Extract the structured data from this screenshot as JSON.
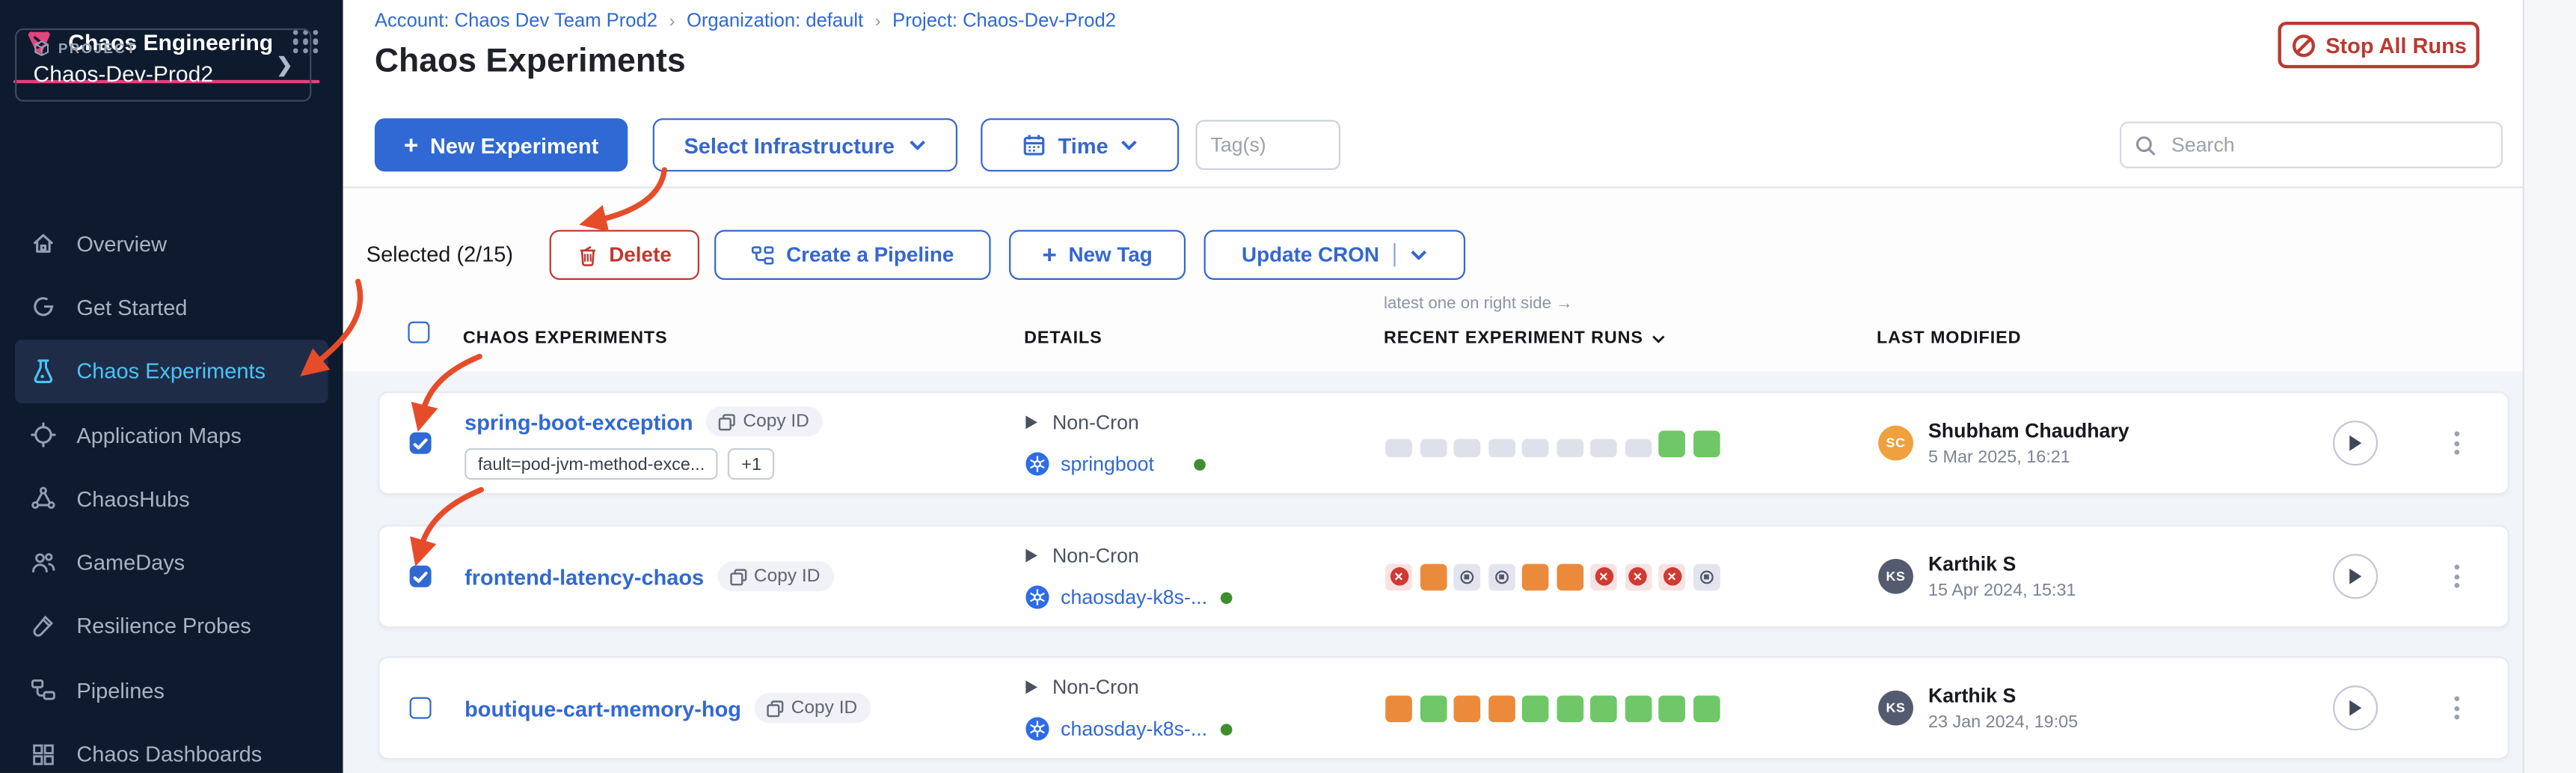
{
  "sidebar": {
    "brand_title": "Chaos Engineering",
    "project": {
      "label": "PROJECT",
      "name": "Chaos-Dev-Prod2"
    },
    "items": [
      {
        "label": "Overview"
      },
      {
        "label": "Get Started"
      },
      {
        "label": "Chaos Experiments",
        "active": true
      },
      {
        "label": "Application Maps"
      },
      {
        "label": "ChaosHubs"
      },
      {
        "label": "GameDays"
      },
      {
        "label": "Resilience Probes"
      },
      {
        "label": "Pipelines"
      },
      {
        "label": "Chaos Dashboards"
      }
    ]
  },
  "header": {
    "breadcrumb": [
      {
        "label": "Account: Chaos Dev Team Prod2"
      },
      {
        "label": "Organization: default"
      },
      {
        "label": "Project: Chaos-Dev-Prod2"
      }
    ],
    "separator": "›",
    "title": "Chaos Experiments",
    "stop_all_runs_label": "Stop All Runs"
  },
  "toolbar": {
    "new_experiment_label": "New Experiment",
    "plus": "+",
    "select_infrastructure_label": "Select Infrastructure",
    "time_label": "Time",
    "tags_placeholder": "Tag(s)",
    "search_placeholder": "Search"
  },
  "selection_bar": {
    "selected_label": "Selected (2/15)",
    "delete_label": "Delete",
    "create_pipeline_label": "Create a Pipeline",
    "new_tag_label": "New Tag",
    "update_cron_label": "Update CRON"
  },
  "table": {
    "runs_note": "latest one on right side →",
    "columns": {
      "experiments": "CHAOS EXPERIMENTS",
      "details": "DETAILS",
      "runs": "RECENT EXPERIMENT RUNS",
      "modified": "LAST MODIFIED"
    },
    "rows": [
      {
        "name": "spring-boot-exception",
        "copy_id_label": "Copy ID",
        "checked": true,
        "tag": "fault=pod-jvm-method-exce...",
        "tag_more": "+1",
        "cron": "Non-Cron",
        "infra": "springboot",
        "runs": [
          "gray",
          "gray",
          "gray",
          "gray",
          "gray",
          "gray",
          "gray",
          "gray",
          "green",
          "green"
        ],
        "modified_by": {
          "initials": "SC",
          "name": "Shubham Chaudhary",
          "date": "5 Mar 2025, 16:21",
          "avatar_color": "#f0a13e"
        }
      },
      {
        "name": "frontend-latency-chaos",
        "copy_id_label": "Copy ID",
        "checked": true,
        "cron": "Non-Cron",
        "infra": "chaosday-k8s-...",
        "runs": [
          "failed",
          "orange",
          "stopped",
          "stopped",
          "orange",
          "orange",
          "failed",
          "failed",
          "failed",
          "stopped"
        ],
        "modified_by": {
          "initials": "KS",
          "name": "Karthik S",
          "date": "15 Apr 2024, 15:31",
          "avatar_color": "#555b6e"
        }
      },
      {
        "name": "boutique-cart-memory-hog",
        "copy_id_label": "Copy ID",
        "checked": false,
        "cron": "Non-Cron",
        "infra": "chaosday-k8s-...",
        "runs": [
          "orange",
          "green",
          "orange",
          "orange",
          "green",
          "green",
          "green",
          "green",
          "green",
          "green"
        ],
        "modified_by": {
          "initials": "KS",
          "name": "Karthik S",
          "date": "23 Jan 2024, 19:05",
          "avatar_color": "#555b6e"
        }
      }
    ]
  },
  "colors": {
    "sidebar_bg": "#0e1b2e",
    "accent_pink": "#df4379",
    "primary_blue": "#3069d3",
    "active_item_blue": "#4dc3f5",
    "danger_red": "#c0392f",
    "run_green": "#6fc767",
    "run_orange": "#ec8a3c",
    "annotation_red": "#e74c2a",
    "online_green": "#3e8e2e"
  }
}
